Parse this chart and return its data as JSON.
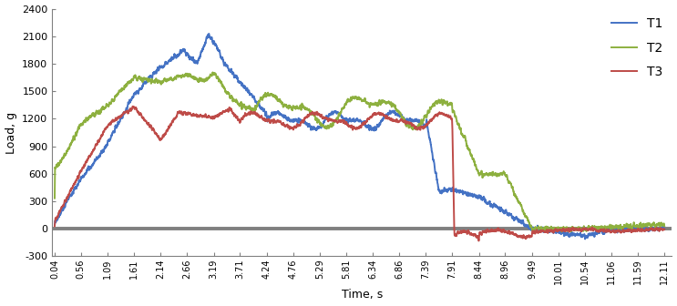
{
  "title": "",
  "xlabel": "Time, s",
  "ylabel": "Load, g",
  "xlim": [
    -0.1,
    12.5
  ],
  "ylim": [
    -300,
    2400
  ],
  "yticks": [
    -300,
    0,
    300,
    600,
    900,
    1200,
    1500,
    1800,
    2100,
    2400
  ],
  "xtick_labels": [
    "0.04",
    "0.56",
    "1.09",
    "1.61",
    "2.14",
    "2.66",
    "3.19",
    "3.71",
    "4.24",
    "4.76",
    "5.29",
    "5.81",
    "6.34",
    "6.86",
    "7.39",
    "7.91",
    "8.44",
    "8.96",
    "9.49",
    "10.01",
    "10.54",
    "11.06",
    "11.59",
    "12.11"
  ],
  "legend": [
    "T1",
    "T2",
    "T3"
  ],
  "colors": {
    "T1": "#4472C4",
    "T2": "#8DB03F",
    "T3": "#BE4B48"
  },
  "line_width": 1.4,
  "background_color": "#ffffff"
}
